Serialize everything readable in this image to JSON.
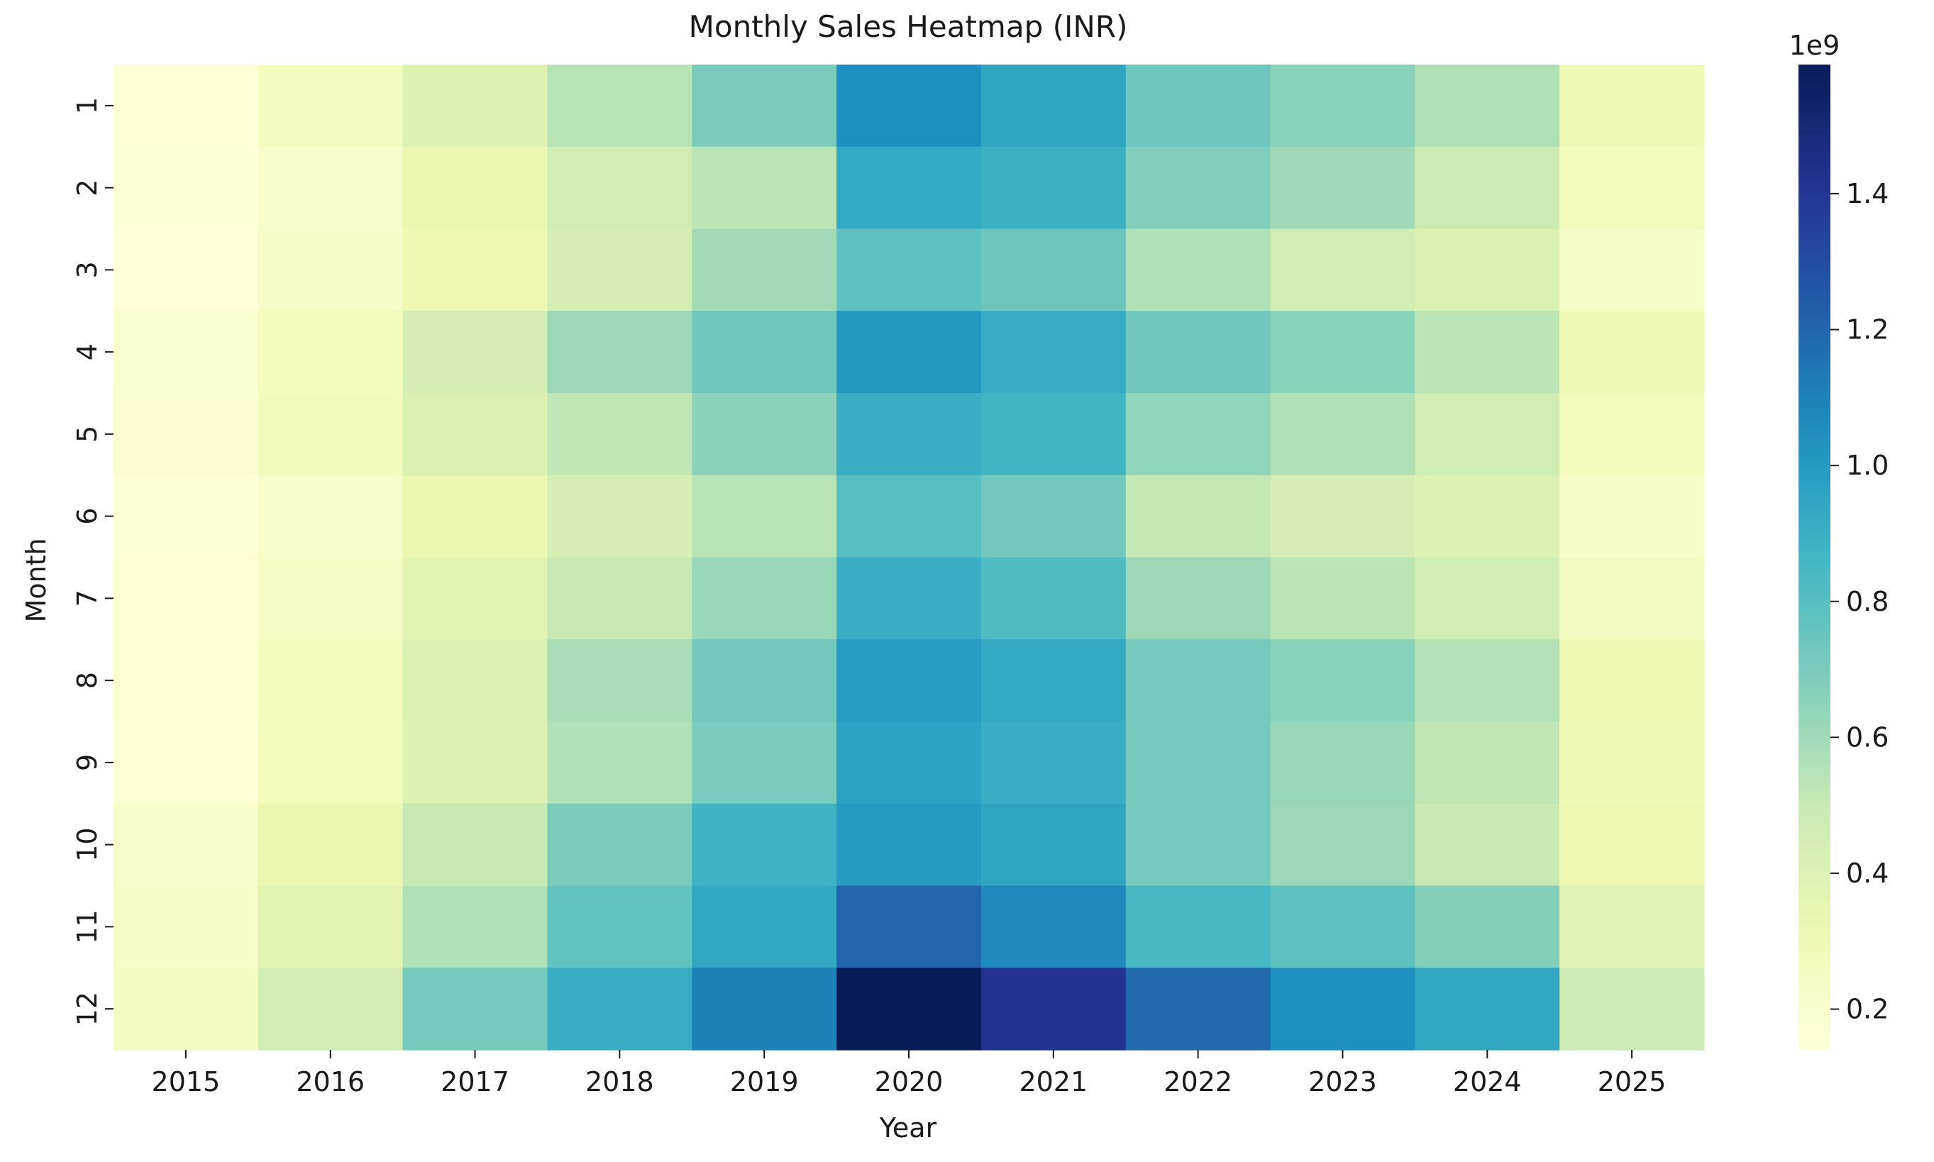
{
  "chart_data": {
    "type": "heatmap",
    "title": "Monthly Sales Heatmap (INR)",
    "xlabel": "Year",
    "ylabel": "Month",
    "x_categories": [
      "2015",
      "2016",
      "2017",
      "2018",
      "2019",
      "2020",
      "2021",
      "2022",
      "2023",
      "2024",
      "2025"
    ],
    "y_categories": [
      "1",
      "2",
      "3",
      "4",
      "5",
      "6",
      "7",
      "8",
      "9",
      "10",
      "11",
      "12"
    ],
    "values": [
      [
        0.16,
        0.25,
        0.4,
        0.54,
        0.7,
        1.05,
        0.95,
        0.74,
        0.66,
        0.56,
        0.3
      ],
      [
        0.15,
        0.21,
        0.33,
        0.46,
        0.53,
        0.93,
        0.89,
        0.68,
        0.6,
        0.48,
        0.27
      ],
      [
        0.14,
        0.22,
        0.31,
        0.44,
        0.59,
        0.78,
        0.74,
        0.56,
        0.46,
        0.41,
        0.23
      ],
      [
        0.19,
        0.27,
        0.44,
        0.61,
        0.73,
        1.01,
        0.92,
        0.73,
        0.66,
        0.53,
        0.3
      ],
      [
        0.18,
        0.28,
        0.41,
        0.52,
        0.65,
        0.91,
        0.87,
        0.64,
        0.56,
        0.46,
        0.27
      ],
      [
        0.15,
        0.21,
        0.33,
        0.44,
        0.54,
        0.8,
        0.72,
        0.51,
        0.44,
        0.4,
        0.22
      ],
      [
        0.17,
        0.24,
        0.37,
        0.5,
        0.62,
        0.91,
        0.82,
        0.61,
        0.53,
        0.46,
        0.26
      ],
      [
        0.17,
        0.27,
        0.41,
        0.58,
        0.72,
        0.99,
        0.93,
        0.71,
        0.66,
        0.55,
        0.31
      ],
      [
        0.16,
        0.27,
        0.4,
        0.56,
        0.7,
        0.97,
        0.91,
        0.71,
        0.62,
        0.52,
        0.3
      ],
      [
        0.21,
        0.33,
        0.5,
        0.7,
        0.88,
        1.0,
        0.95,
        0.71,
        0.61,
        0.5,
        0.31
      ],
      [
        0.22,
        0.37,
        0.56,
        0.77,
        0.94,
        1.2,
        1.07,
        0.85,
        0.78,
        0.67,
        0.39
      ],
      [
        0.25,
        0.45,
        0.71,
        0.91,
        1.1,
        1.59,
        1.42,
        1.18,
        1.05,
        0.94,
        0.48
      ]
    ],
    "colormap": "YlGnBu",
    "colorbar": {
      "range": [
        0.14,
        1.59
      ],
      "ticks": [
        0.2,
        0.4,
        0.6,
        0.8,
        1.0,
        1.2,
        1.4
      ],
      "tick_labels": [
        "0.2",
        "0.4",
        "0.6",
        "0.8",
        "1.0",
        "1.2",
        "1.4"
      ],
      "scale_label": "1e9",
      "placement": "right"
    },
    "grid": false
  }
}
